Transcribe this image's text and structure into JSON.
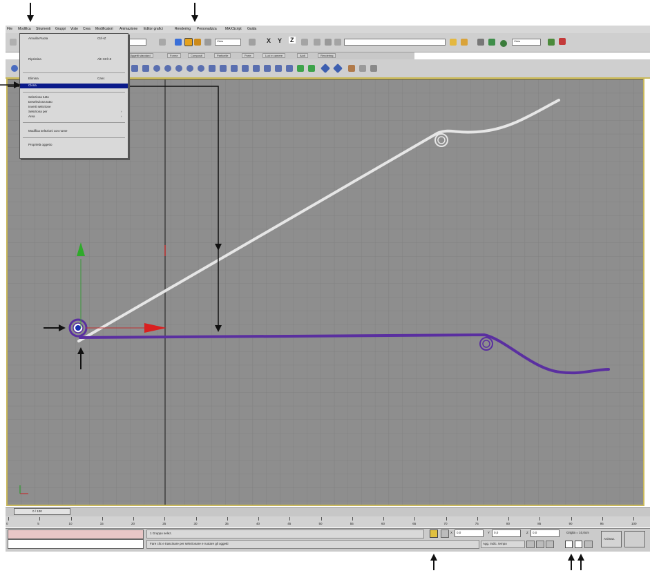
{
  "menubar": {
    "items": [
      "File",
      "Modifica",
      "Strumenti",
      "Gruppi",
      "Viste",
      "Crea",
      "Modificatori",
      "Animazione",
      "Editor grafici",
      "Rendering",
      "Personalizza",
      "MAXScript",
      "Guida"
    ]
  },
  "edit_menu": {
    "items": [
      {
        "label": "Annulla Ruota",
        "shortcut": "Ctrl+Z",
        "selected": false
      },
      {
        "label": "Ripristina",
        "shortcut": "Alt+Ctrl+Z",
        "selected": false
      },
      {
        "label": "Elimina",
        "shortcut": "Canc",
        "selected": false
      },
      {
        "label": "Clona",
        "shortcut": "",
        "selected": true
      },
      {
        "label": "Seleziona tutto",
        "shortcut": "",
        "selected": false
      },
      {
        "label": "Deseleziona tutto",
        "shortcut": "",
        "selected": false
      },
      {
        "label": "Inverti selezione",
        "shortcut": "",
        "selected": false
      },
      {
        "label": "Seleziona per",
        "shortcut": "",
        "selected": false
      },
      {
        "label": "Area",
        "shortcut": "",
        "selected": false
      },
      {
        "label": "Modifica selezioni con nome",
        "shortcut": "",
        "selected": false
      },
      {
        "label": "Proprietà oggetto",
        "shortcut": "",
        "selected": false
      }
    ]
  },
  "toolbar": {
    "view_dropdown": "Vista",
    "view_dropdown_2": "Vista",
    "axis_x": "X",
    "axis_y": "Y",
    "axis_z": "Z"
  },
  "tabs": [
    "Oggetti standard",
    "Forme",
    "Composti",
    "Particelle",
    "Porte",
    "Luci e camere",
    "Aiuti",
    "Rendering"
  ],
  "timeslider": {
    "label": "0 / 100"
  },
  "ruler": {
    "ticks": [
      "0",
      "5",
      "10",
      "15",
      "20",
      "25",
      "30",
      "35",
      "40",
      "45",
      "50",
      "55",
      "60",
      "65",
      "70",
      "75",
      "80",
      "85",
      "90",
      "95",
      "100"
    ]
  },
  "status": {
    "selection": "1 Gruppo selez.",
    "prompt": "Fare clic e trascinare per selezionare e ruotare gli oggetti",
    "x_label": "X",
    "x_value": "0,0",
    "y_label": "Y",
    "y_value": "0,0",
    "z_label": "Z",
    "z_value": "0,0",
    "grid": "Griglia = 10,0cm",
    "add_time_tag": "Agg. indic. tempo",
    "animate": "Animaz."
  },
  "colors": {
    "viewport_bg": "#8e8e8e",
    "grid_line": "#7d7d7d",
    "active_border": "#c9b85a",
    "white_spline": "#e6e6e6",
    "purple_spline": "#5a2fa0",
    "menu_highlight": "#0a1a8a"
  }
}
